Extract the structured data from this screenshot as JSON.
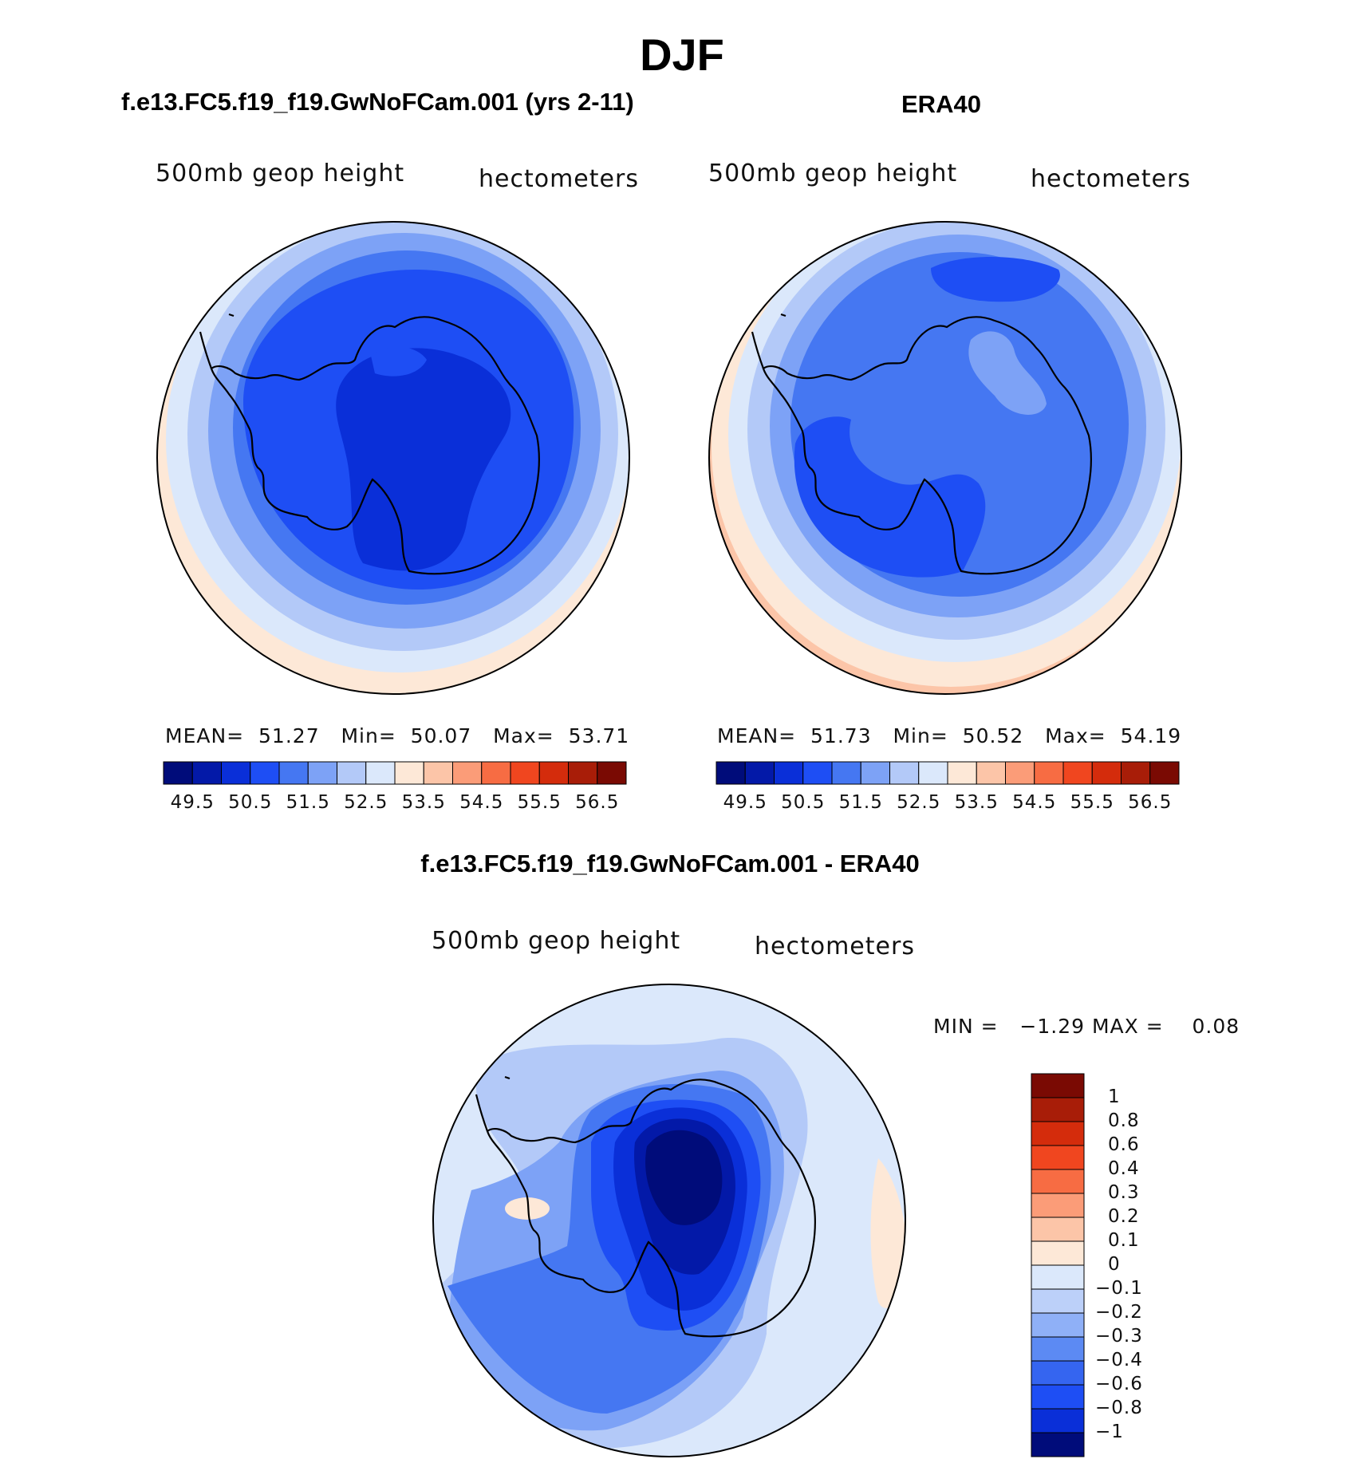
{
  "figure_title": "DJF",
  "colors": {
    "palette": [
      "#000c7a",
      "#0319a8",
      "#0a2fd8",
      "#1e4ef4",
      "#4577f2",
      "#7da2f6",
      "#b3c9f8",
      "#dbe8fb",
      "#fde8d7",
      "#fcc5a8",
      "#fb9c78",
      "#f76c43",
      "#f0461f",
      "#d42c0c",
      "#a81d08",
      "#7a0a03"
    ],
    "diff_palette": [
      "#000c7a",
      "#0a2fd8",
      "#1e4ef4",
      "#3565f0",
      "#5c8af3",
      "#8fb0f7",
      "#bcd0f9",
      "#dbe8fb",
      "#fde8d7",
      "#fcc5a8",
      "#fb9c78",
      "#f76c43",
      "#f0461f",
      "#d42c0c",
      "#a81d08",
      "#7a0a03"
    ]
  },
  "chart_data": [
    {
      "type": "heatmap",
      "panel": "model",
      "title": "f.e13.FC5.f19_f19.GwNoFCam.001 (yrs 2-11)",
      "variable": "500mb geop height",
      "units": "hectometers",
      "stats": {
        "mean_label": "MEAN=",
        "mean": "51.27",
        "min_label": "Min=",
        "min": "50.07",
        "max_label": "Max=",
        "max": "53.71"
      },
      "colorbar_ticks": [
        "49.5",
        "50.5",
        "51.5",
        "52.5",
        "53.5",
        "54.5",
        "55.5",
        "56.5"
      ]
    },
    {
      "type": "heatmap",
      "panel": "obs",
      "title": "ERA40",
      "variable": "500mb geop height",
      "units": "hectometers",
      "stats": {
        "mean_label": "MEAN=",
        "mean": "51.73",
        "min_label": "Min=",
        "min": "50.52",
        "max_label": "Max=",
        "max": "54.19"
      },
      "colorbar_ticks": [
        "49.5",
        "50.5",
        "51.5",
        "52.5",
        "53.5",
        "54.5",
        "55.5",
        "56.5"
      ]
    },
    {
      "type": "heatmap",
      "panel": "difference",
      "title": "f.e13.FC5.f19_f19.GwNoFCam.001 - ERA40",
      "variable": "500mb geop height",
      "units": "hectometers",
      "stats": {
        "min_label": "MIN =",
        "min": "−1.29",
        "max_label": "MAX =",
        "max": "0.08"
      },
      "colorbar_ticks": [
        "1",
        "0.8",
        "0.6",
        "0.4",
        "0.3",
        "0.2",
        "0.1",
        "0",
        "−0.1",
        "−0.2",
        "−0.3",
        "−0.4",
        "−0.6",
        "−0.8",
        "−1"
      ]
    }
  ]
}
